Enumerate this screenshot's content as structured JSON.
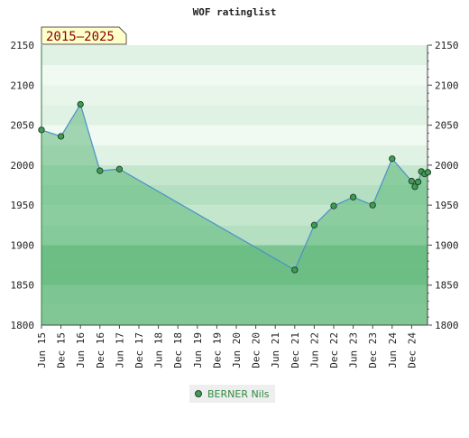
{
  "chart_data": {
    "type": "area",
    "title": "WOF ratinglist",
    "badge": "2015–2025",
    "ylim": [
      1800,
      2150
    ],
    "y_ticks": [
      1800,
      1850,
      1900,
      1950,
      2000,
      2050,
      2100,
      2150
    ],
    "x_tick_labels": [
      "Jun 15",
      "Dec 15",
      "Jun 16",
      "Dec 16",
      "Jun 17",
      "Dec 17",
      "Jun 18",
      "Dec 18",
      "Jun 19",
      "Dec 19",
      "Jun 20",
      "Dec 20",
      "Jun 21",
      "Dec 21",
      "Jun 22",
      "Dec 22",
      "Jun 23",
      "Dec 23",
      "Jun 24",
      "Dec 24"
    ],
    "legend_position": "bottom-center",
    "series": [
      {
        "name": "BERNER Nils",
        "color": "#2e8b3e",
        "line_color": "#4a90c8",
        "points": [
          {
            "date": "2015-06",
            "rating": 2044
          },
          {
            "date": "2015-12",
            "rating": 2036
          },
          {
            "date": "2016-06",
            "rating": 2076
          },
          {
            "date": "2016-12",
            "rating": 1993
          },
          {
            "date": "2017-06",
            "rating": 1995
          },
          {
            "date": "2021-12",
            "rating": 1869
          },
          {
            "date": "2022-06",
            "rating": 1925
          },
          {
            "date": "2022-12",
            "rating": 1949
          },
          {
            "date": "2023-06",
            "rating": 1960
          },
          {
            "date": "2023-12",
            "rating": 1950
          },
          {
            "date": "2024-06",
            "rating": 2008
          },
          {
            "date": "2024-12",
            "rating": 1980
          },
          {
            "date": "2025-01",
            "rating": 1973
          },
          {
            "date": "2025-02",
            "rating": 1979
          },
          {
            "date": "2025-03",
            "rating": 1992
          },
          {
            "date": "2025-04",
            "rating": 1989
          },
          {
            "date": "2025-05",
            "rating": 1991
          }
        ]
      }
    ]
  },
  "colors": {
    "band_dark": "#7cc592",
    "band_mid": "#b4dfc0",
    "band_light": "#dff2e4",
    "band_lightest": "#f1f9f3",
    "area_fill": "#5fb87a",
    "marker_fill": "#3e9c55",
    "badge_bg": "#ffffc8"
  }
}
